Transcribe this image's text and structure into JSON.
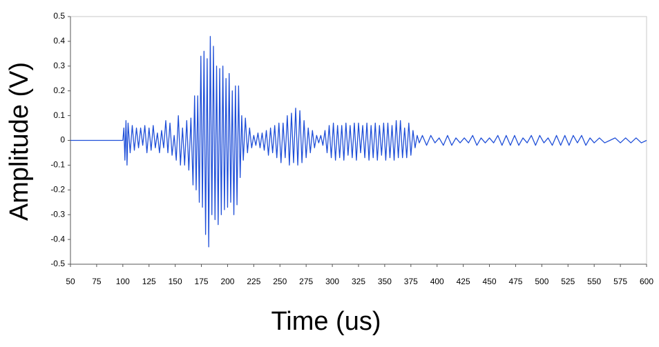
{
  "chart_data": {
    "type": "line",
    "x_label": "Time (us)",
    "y_label": "Amplitude (V)",
    "color": "#1f4fd8",
    "xlim": [
      50,
      600
    ],
    "ylim": [
      -0.5,
      0.5
    ],
    "xticks": [
      50,
      75,
      100,
      125,
      150,
      175,
      200,
      225,
      250,
      275,
      300,
      325,
      350,
      375,
      400,
      425,
      450,
      475,
      500,
      525,
      550,
      575,
      600
    ],
    "yticks": [
      0.5,
      0.4,
      0.3,
      0.2,
      0.1,
      0,
      -0.1,
      -0.2,
      -0.3,
      -0.4,
      -0.5
    ],
    "x": [
      50,
      100,
      101,
      102,
      103,
      104,
      105,
      107,
      109,
      111,
      113,
      115,
      117,
      119,
      121,
      123,
      125,
      127,
      129,
      131,
      133,
      135,
      137,
      139,
      141,
      143,
      145,
      147,
      149,
      151,
      153,
      155,
      157,
      159,
      161,
      163,
      165,
      167,
      168.5,
      170,
      171.5,
      173,
      174.5,
      176,
      177.5,
      179,
      180.5,
      182,
      183.5,
      185,
      186.5,
      188,
      189.5,
      191,
      192.5,
      194,
      195.5,
      197,
      198.5,
      200,
      201.5,
      203,
      204.5,
      206,
      207.5,
      209,
      210.5,
      212,
      213.5,
      215,
      217,
      219,
      221,
      223,
      225,
      227,
      229,
      231,
      233,
      235,
      237,
      239,
      241,
      243,
      245,
      247,
      249,
      251,
      253,
      255,
      257,
      259,
      261,
      263,
      265,
      267,
      269,
      271,
      273,
      275,
      277,
      279,
      281,
      283,
      285,
      287,
      289,
      291,
      293,
      295,
      297,
      299,
      301,
      303,
      305,
      307,
      309,
      311,
      313,
      315,
      317,
      319,
      321,
      323,
      325,
      327,
      329,
      331,
      333,
      335,
      337,
      339,
      341,
      343,
      345,
      347,
      349,
      351,
      353,
      355,
      357,
      359,
      361,
      363,
      365,
      367,
      369,
      371,
      373,
      375,
      377,
      379,
      381,
      383,
      386,
      390,
      394,
      398,
      402,
      406,
      410,
      414,
      418,
      422,
      426,
      430,
      434,
      438,
      442,
      446,
      450,
      454,
      458,
      462,
      466,
      470,
      474,
      478,
      482,
      486,
      490,
      494,
      498,
      502,
      506,
      510,
      514,
      518,
      522,
      526,
      530,
      534,
      538,
      542,
      546,
      550,
      555,
      560,
      565,
      570,
      575,
      580,
      585,
      590,
      595,
      600
    ],
    "values": [
      0,
      0,
      0.05,
      -0.08,
      0.08,
      -0.1,
      0.07,
      -0.05,
      0.06,
      -0.04,
      0.05,
      -0.03,
      0.05,
      -0.02,
      0.06,
      -0.05,
      0.05,
      -0.04,
      0.06,
      -0.03,
      0.03,
      -0.05,
      0.04,
      -0.03,
      0.08,
      -0.05,
      0.07,
      -0.06,
      0.02,
      -0.08,
      0.1,
      -0.1,
      0.05,
      -0.1,
      0.08,
      -0.12,
      0.09,
      -0.18,
      0.18,
      -0.2,
      0.18,
      -0.25,
      0.34,
      -0.27,
      0.36,
      -0.38,
      0.33,
      -0.43,
      0.42,
      -0.3,
      0.38,
      -0.32,
      0.3,
      -0.34,
      0.29,
      -0.3,
      0.3,
      -0.28,
      0.25,
      -0.27,
      0.27,
      -0.25,
      0.2,
      -0.3,
      0.22,
      -0.26,
      0.22,
      -0.15,
      0.1,
      -0.08,
      0.09,
      -0.05,
      0.05,
      -0.03,
      0.02,
      -0.02,
      0.03,
      -0.03,
      0.03,
      -0.04,
      0.04,
      -0.06,
      0.05,
      -0.05,
      0.06,
      -0.07,
      0.07,
      -0.09,
      0.07,
      -0.07,
      0.1,
      -0.1,
      0.11,
      -0.09,
      0.13,
      -0.1,
      0.12,
      -0.09,
      0.08,
      -0.07,
      0.05,
      -0.05,
      0.04,
      -0.03,
      0.02,
      -0.01,
      0.02,
      -0.02,
      0.04,
      -0.05,
      0.06,
      -0.07,
      0.07,
      -0.08,
      0.06,
      -0.07,
      0.06,
      -0.08,
      0.07,
      -0.06,
      0.06,
      -0.07,
      0.07,
      -0.08,
      0.07,
      -0.05,
      0.06,
      -0.07,
      0.07,
      -0.08,
      0.06,
      -0.07,
      0.07,
      -0.08,
      0.06,
      -0.06,
      0.07,
      -0.08,
      0.07,
      -0.07,
      0.06,
      -0.08,
      0.08,
      -0.07,
      0.08,
      -0.07,
      0.05,
      -0.07,
      0.07,
      -0.06,
      0.04,
      -0.03,
      0.02,
      -0.01,
      0.02,
      -0.02,
      0.02,
      -0.01,
      0.01,
      -0.02,
      0.02,
      -0.02,
      0.01,
      -0.01,
      0.01,
      -0.01,
      0.02,
      -0.02,
      0.01,
      -0.01,
      0.01,
      -0.01,
      0.02,
      -0.02,
      0.02,
      -0.02,
      0.02,
      -0.02,
      0.01,
      -0.01,
      0.02,
      -0.02,
      0.02,
      -0.01,
      0.01,
      -0.02,
      0.02,
      -0.02,
      0.02,
      -0.02,
      0.02,
      -0.01,
      0.02,
      -0.02,
      0.01,
      -0.01,
      0.01,
      -0.01,
      0,
      0.01,
      -0.01,
      0.01,
      -0.01,
      0.01,
      -0.01,
      0
    ]
  }
}
